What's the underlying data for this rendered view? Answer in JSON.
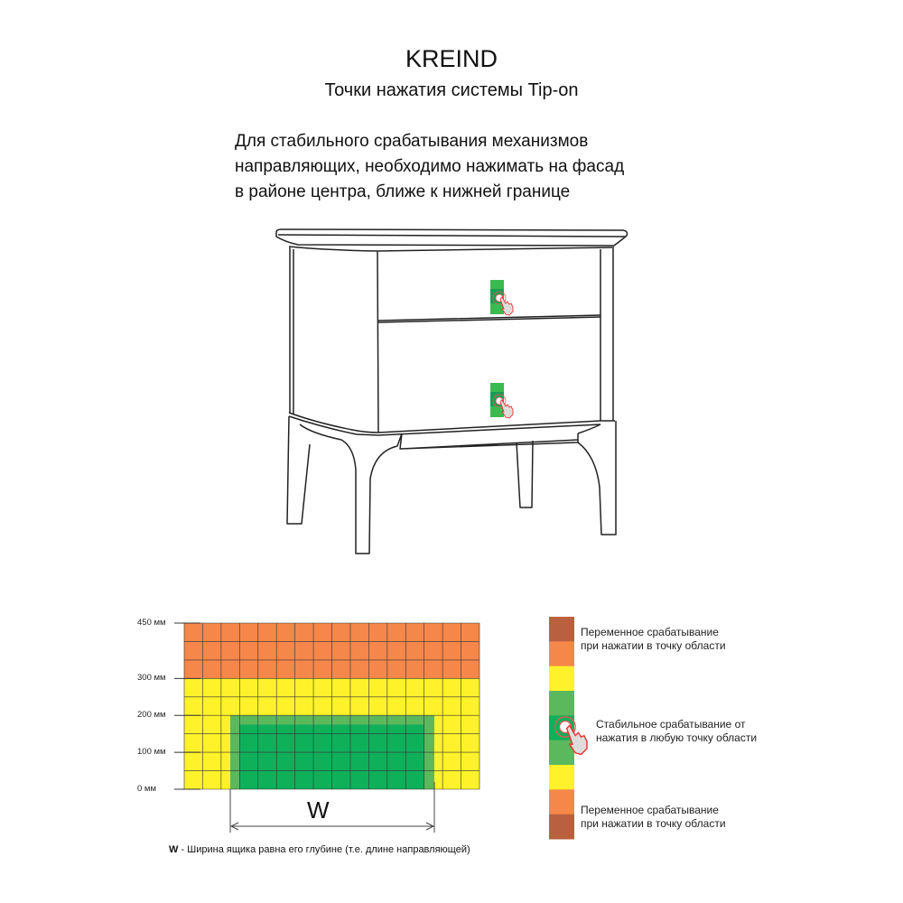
{
  "header": {
    "title": "KREIND",
    "subtitle": "Точки нажатия системы Tip-on"
  },
  "description": {
    "lines": [
      "Для стабильного срабатывания механизмов",
      "направляющих, необходимо нажимать на фасад",
      "в районе центра, ближе к нижней границе"
    ]
  },
  "illustration": {
    "subject": "bedside-table-two-drawers",
    "markers": [
      "press-point-top-drawer",
      "press-point-bottom-drawer"
    ]
  },
  "chart_data": {
    "type": "heatmap",
    "y_ticks": [
      "450 мм",
      "300 мм",
      "200 мм",
      "100 мм",
      "0 мм"
    ],
    "y_values": [
      450,
      300,
      200,
      100,
      0
    ],
    "ylim": [
      0,
      450
    ],
    "grid": true,
    "columns": 16,
    "rows": 9,
    "zones": [
      {
        "name": "variable",
        "color": "#F5874A",
        "y_from": 300,
        "y_to": 450
      },
      {
        "name": "transition",
        "color": "#FFF22A",
        "y_from": 0,
        "y_to": 300
      },
      {
        "name": "stable-outer",
        "color": "#5CB85C",
        "y_from": 0,
        "y_to": 200
      },
      {
        "name": "stable-core",
        "color": "#0FB05A",
        "y_from": 0,
        "y_to": 175
      }
    ],
    "dimension_label": "W",
    "footnote_key": "W",
    "footnote_text": " - Ширина ящика равна его глубине (т.е. длине направляющей)"
  },
  "legend": {
    "colors": [
      "#B9613F",
      "#F5874A",
      "#FFF22A",
      "#5CB85C",
      "#0FB05A",
      "#5CB85C",
      "#FFF22A",
      "#F5874A",
      "#B9613F"
    ],
    "items": [
      {
        "lines": [
          "Переменное срабатывание",
          "при нажатии в точку области"
        ]
      },
      {
        "lines": [
          "Стабильное срабатывание от",
          "нажатия в любую точку области"
        ]
      },
      {
        "lines": [
          "Переменное срабатывание",
          "при нажатии в точку области"
        ]
      }
    ],
    "icon": "hand-pointer-icon"
  }
}
